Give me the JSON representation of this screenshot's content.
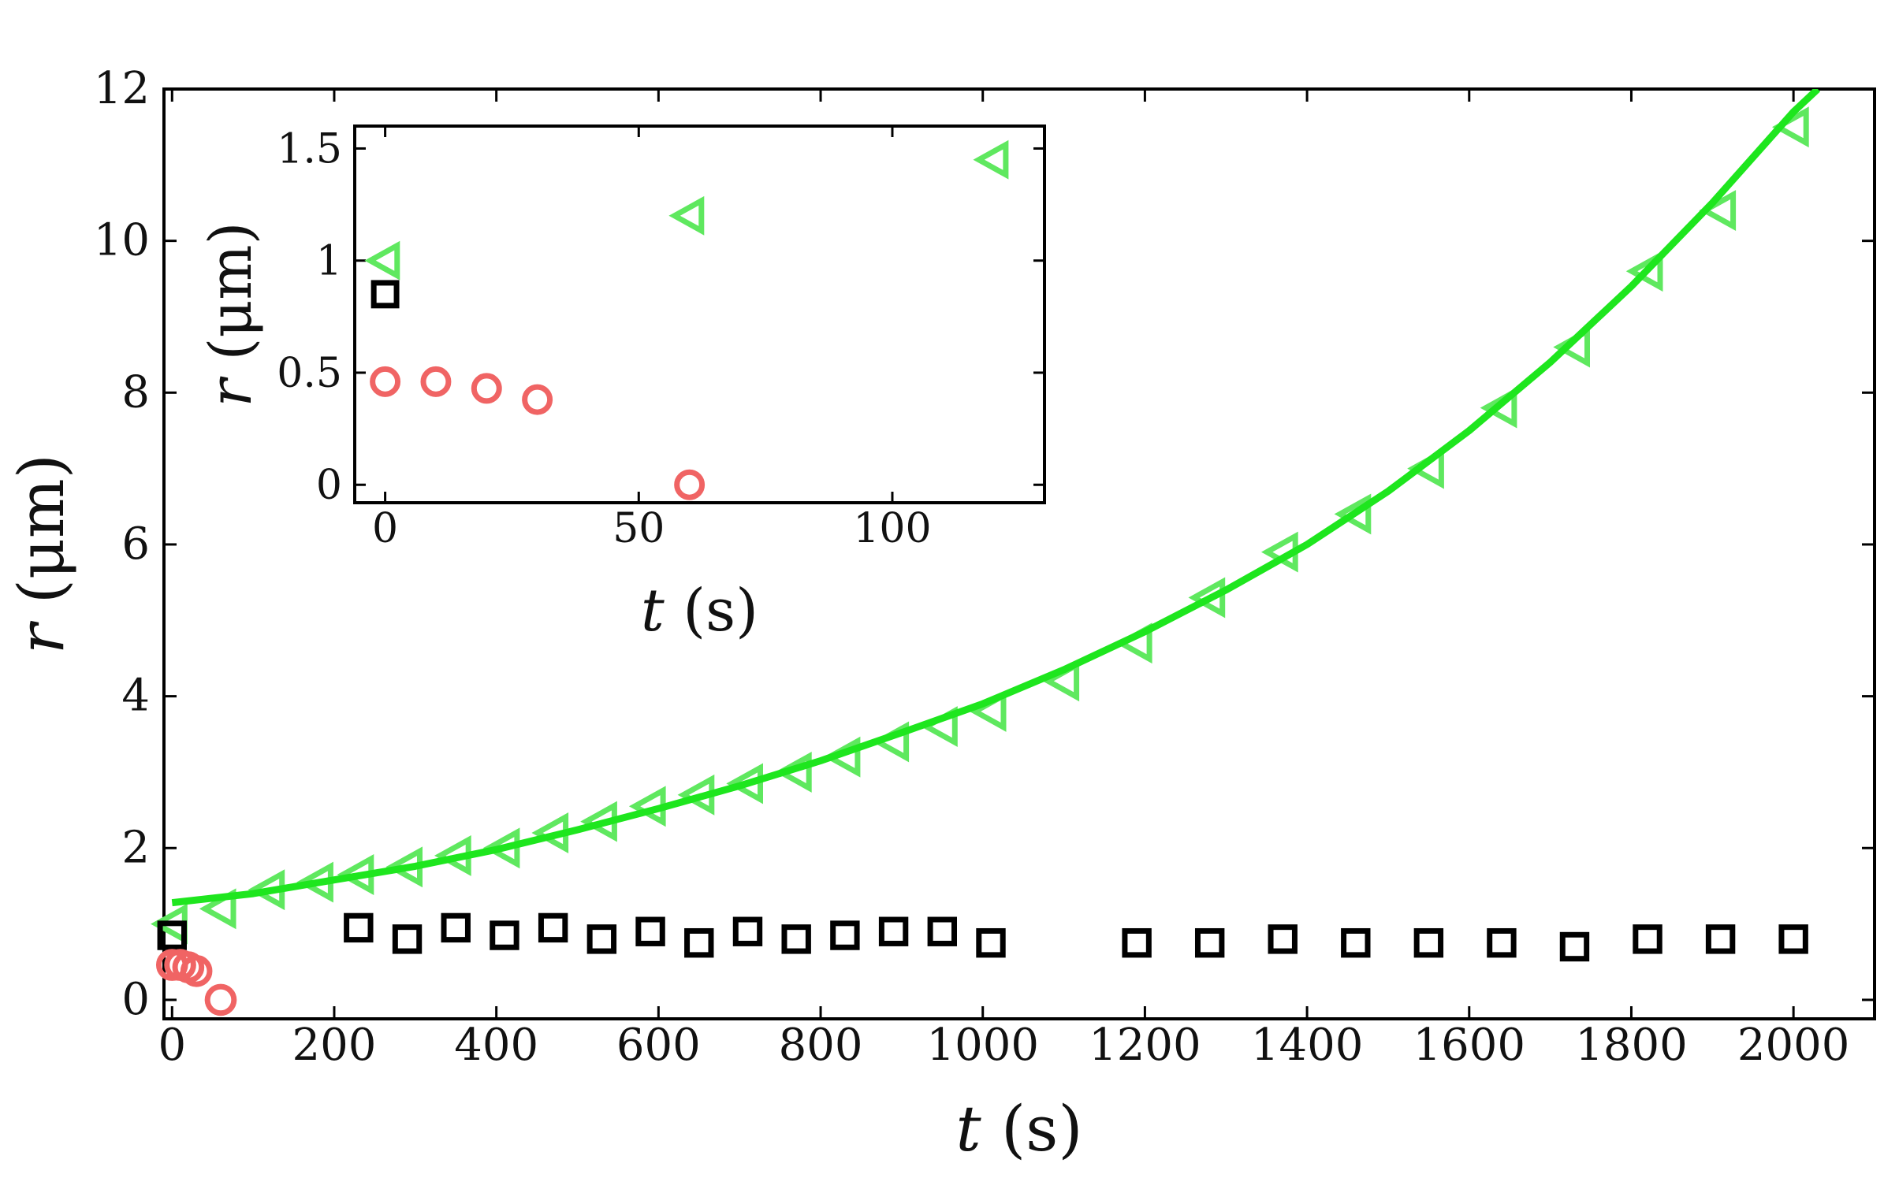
{
  "colors": {
    "triangle": "#5fe85f",
    "fit_line": "#1ee61e",
    "circle": "#f06464",
    "square": "#000000",
    "axis": "#000000"
  },
  "chart_data": [
    {
      "panel": "main",
      "type": "scatter",
      "xlabel": "t (s)",
      "ylabel": "r (μm)",
      "xlim": [
        -10,
        2100
      ],
      "ylim": [
        -0.25,
        12
      ],
      "xticks": [
        "0",
        "200",
        "400",
        "600",
        "800",
        "1000",
        "1200",
        "1400",
        "1600",
        "1800",
        "2000"
      ],
      "yticks": [
        "0",
        "2",
        "4",
        "6",
        "8",
        "10",
        "12"
      ],
      "grid": false,
      "series": [
        {
          "marker": "triangle-left-open",
          "color": "#5fe85f",
          "points": [
            [
              0,
              1.0
            ],
            [
              60,
              1.2
            ],
            [
              120,
              1.45
            ],
            [
              180,
              1.55
            ],
            [
              230,
              1.65
            ],
            [
              290,
              1.75
            ],
            [
              350,
              1.9
            ],
            [
              410,
              2.0
            ],
            [
              470,
              2.2
            ],
            [
              530,
              2.35
            ],
            [
              590,
              2.55
            ],
            [
              650,
              2.7
            ],
            [
              710,
              2.85
            ],
            [
              770,
              3.0
            ],
            [
              830,
              3.2
            ],
            [
              890,
              3.4
            ],
            [
              950,
              3.6
            ],
            [
              1010,
              3.8
            ],
            [
              1100,
              4.2
            ],
            [
              1190,
              4.7
            ],
            [
              1280,
              5.3
            ],
            [
              1370,
              5.9
            ],
            [
              1460,
              6.4
            ],
            [
              1550,
              7.0
            ],
            [
              1640,
              7.8
            ],
            [
              1730,
              8.6
            ],
            [
              1820,
              9.6
            ],
            [
              1910,
              10.4
            ],
            [
              2000,
              11.5
            ]
          ]
        },
        {
          "marker": "square-open",
          "color": "#000000",
          "points": [
            [
              0,
              0.85
            ],
            [
              230,
              0.95
            ],
            [
              290,
              0.8
            ],
            [
              350,
              0.95
            ],
            [
              410,
              0.85
            ],
            [
              470,
              0.95
            ],
            [
              530,
              0.8
            ],
            [
              590,
              0.9
            ],
            [
              650,
              0.75
            ],
            [
              710,
              0.9
            ],
            [
              770,
              0.8
            ],
            [
              830,
              0.85
            ],
            [
              890,
              0.9
            ],
            [
              950,
              0.9
            ],
            [
              1010,
              0.75
            ],
            [
              1190,
              0.75
            ],
            [
              1280,
              0.75
            ],
            [
              1370,
              0.8
            ],
            [
              1460,
              0.75
            ],
            [
              1550,
              0.75
            ],
            [
              1640,
              0.75
            ],
            [
              1730,
              0.7
            ],
            [
              1820,
              0.8
            ],
            [
              1910,
              0.8
            ],
            [
              2000,
              0.8
            ]
          ]
        },
        {
          "marker": "circle-open",
          "color": "#f06464",
          "points": [
            [
              0,
              0.46
            ],
            [
              10,
              0.46
            ],
            [
              20,
              0.43
            ],
            [
              30,
              0.38
            ],
            [
              60,
              0.0
            ]
          ]
        },
        {
          "marker": "line",
          "color": "#1ee61e",
          "label_source": "fit",
          "points": [
            [
              0,
              1.28
            ],
            [
              100,
              1.4
            ],
            [
              200,
              1.58
            ],
            [
              300,
              1.76
            ],
            [
              400,
              1.98
            ],
            [
              500,
              2.24
            ],
            [
              600,
              2.52
            ],
            [
              700,
              2.82
            ],
            [
              800,
              3.15
            ],
            [
              900,
              3.52
            ],
            [
              1000,
              3.9
            ],
            [
              1100,
              4.35
            ],
            [
              1200,
              4.85
            ],
            [
              1300,
              5.4
            ],
            [
              1400,
              6.0
            ],
            [
              1500,
              6.7
            ],
            [
              1600,
              7.5
            ],
            [
              1700,
              8.4
            ],
            [
              1800,
              9.4
            ],
            [
              1900,
              10.5
            ],
            [
              2000,
              11.7
            ],
            [
              2030,
              12.0
            ]
          ]
        }
      ]
    },
    {
      "panel": "inset",
      "type": "scatter",
      "xlabel": "t (s)",
      "ylabel": "r (μm)",
      "xlim": [
        -6,
        130
      ],
      "ylim": [
        -0.08,
        1.6
      ],
      "xticks": [
        "0",
        "50",
        "100"
      ],
      "yticks": [
        "0",
        "0.5",
        "1",
        "1.5"
      ],
      "grid": false,
      "series": [
        {
          "marker": "triangle-left-open",
          "color": "#5fe85f",
          "points": [
            [
              0,
              1.0
            ],
            [
              60,
              1.2
            ],
            [
              120,
              1.45
            ]
          ]
        },
        {
          "marker": "square-open",
          "color": "#000000",
          "points": [
            [
              0,
              0.85
            ]
          ]
        },
        {
          "marker": "circle-open",
          "color": "#f06464",
          "points": [
            [
              0,
              0.46
            ],
            [
              10,
              0.46
            ],
            [
              20,
              0.43
            ],
            [
              30,
              0.38
            ],
            [
              60,
              0.0
            ]
          ]
        }
      ]
    }
  ]
}
